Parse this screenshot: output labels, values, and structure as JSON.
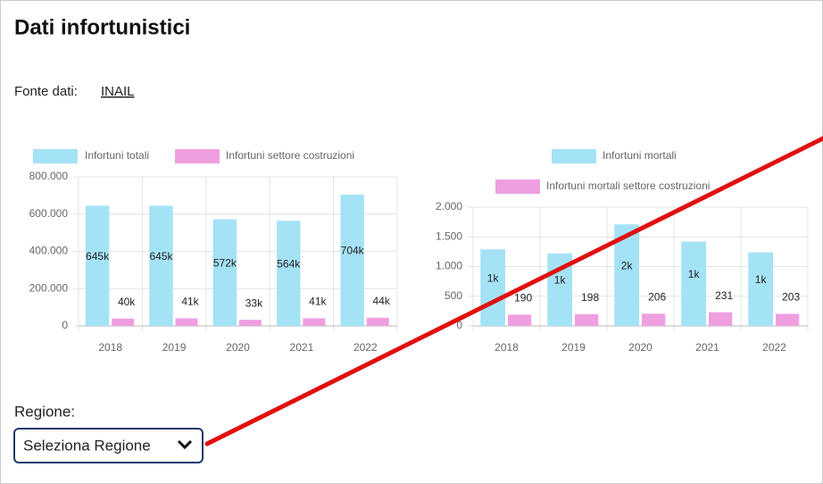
{
  "header": {
    "title": "Dati infortunistici"
  },
  "source": {
    "label": "Fonte dati:",
    "link": "INAIL"
  },
  "chart_data": [
    {
      "type": "bar",
      "categories": [
        "2018",
        "2019",
        "2020",
        "2021",
        "2022"
      ],
      "series": [
        {
          "name": "Infortuni totali",
          "color": "#a4e2f6",
          "values": [
            645000,
            645000,
            572000,
            564000,
            704000
          ],
          "value_labels": [
            "645k",
            "645k",
            "572k",
            "564k",
            "704k"
          ]
        },
        {
          "name": "Infortuni settore costruzioni",
          "color": "#ef9fe0",
          "values": [
            40000,
            41000,
            33000,
            41000,
            44000
          ],
          "value_labels": [
            "40k",
            "41k",
            "33k",
            "41k",
            "44k"
          ]
        }
      ],
      "ylim": [
        0,
        800000
      ],
      "yticks": [
        0,
        {
          "value": 200000,
          "label": "200.000"
        },
        {
          "value": 400000,
          "label": "400.000"
        },
        {
          "value": 600000,
          "label": "600.000"
        },
        {
          "value": 800000,
          "label": "800.000"
        }
      ],
      "grid": true
    },
    {
      "type": "bar",
      "categories": [
        "2018",
        "2019",
        "2020",
        "2021",
        "2022"
      ],
      "series": [
        {
          "name": "Infortuni mortali",
          "color": "#a4e2f6",
          "values": [
            1290,
            1220,
            1710,
            1420,
            1240
          ],
          "value_labels": [
            "1k",
            "1k",
            "2k",
            "1k",
            "1k"
          ]
        },
        {
          "name": "Infortuni mortali settore costruzioni",
          "color": "#ef9fe0",
          "values": [
            190,
            198,
            206,
            231,
            203
          ]
        }
      ],
      "ylim": [
        0,
        2000
      ],
      "yticks": [
        0,
        500,
        {
          "value": 1000,
          "label": "1.000"
        },
        {
          "value": 1500,
          "label": "1.500"
        },
        {
          "value": 2000,
          "label": "2.000"
        }
      ],
      "grid": true
    }
  ],
  "region": {
    "label": "Regione:",
    "select": "Seleziona Regione"
  }
}
